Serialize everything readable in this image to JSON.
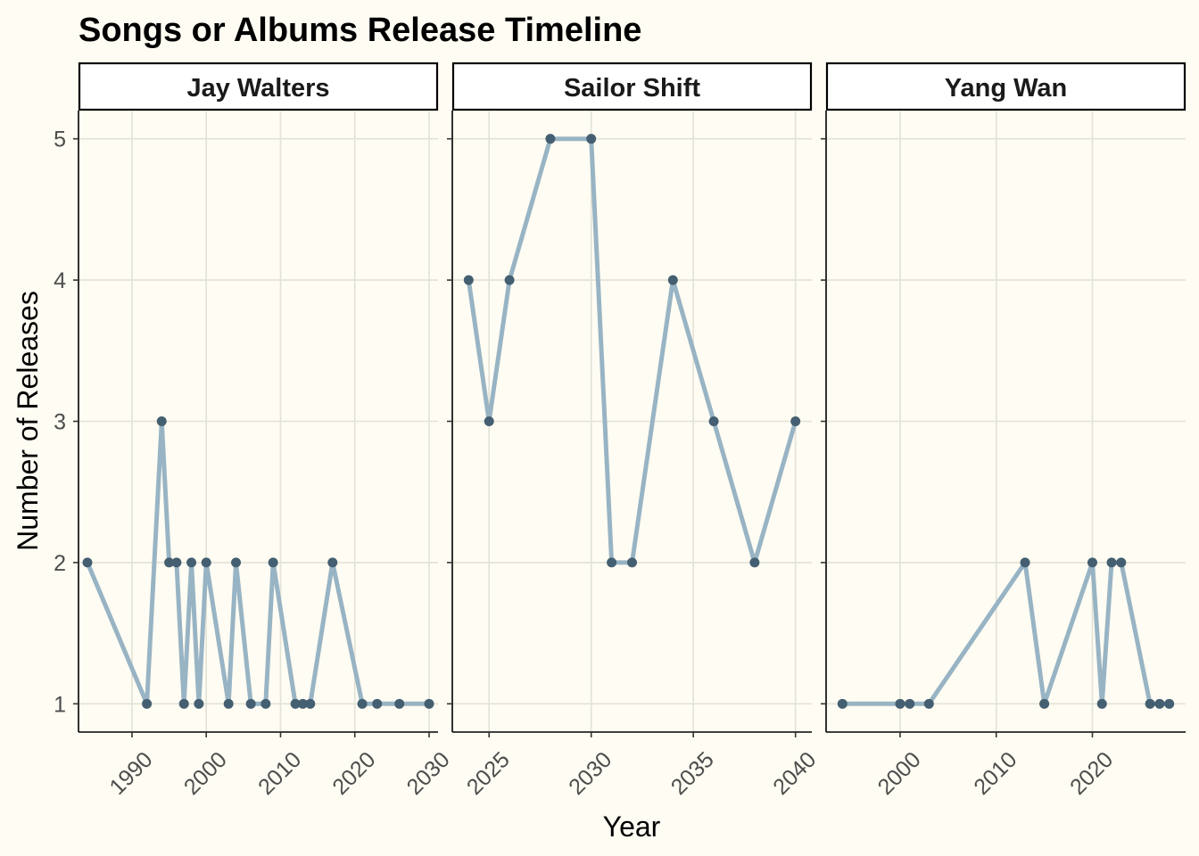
{
  "chart_data": {
    "type": "line",
    "title": "Songs or Albums Release Timeline",
    "xlabel": "Year",
    "ylabel": "Number of Releases",
    "y_ticks": [
      1,
      2,
      3,
      4,
      5
    ],
    "ylim": [
      0.8,
      5.2
    ],
    "grid": true,
    "colors": {
      "background": "#fffcf3",
      "line": "#98b4c4",
      "point": "#445f71",
      "grid": "#e2e2d6"
    },
    "facets": [
      {
        "name": "Jay Walters",
        "xlim": [
          1982.8,
          2031.2
        ],
        "x_ticks": [
          1990,
          2000,
          2010,
          2020,
          2030
        ],
        "x": [
          1984,
          1992,
          1994,
          1995,
          1996,
          1997,
          1998,
          1999,
          2000,
          2003,
          2004,
          2006,
          2008,
          2009,
          2012,
          2013,
          2014,
          2017,
          2021,
          2023,
          2026,
          2030
        ],
        "y": [
          2,
          1,
          3,
          2,
          2,
          1,
          2,
          1,
          2,
          1,
          2,
          1,
          1,
          2,
          1,
          1,
          1,
          2,
          1,
          1,
          1,
          1
        ]
      },
      {
        "name": "Sailor Shift",
        "xlim": [
          2023.2,
          2040.8
        ],
        "x_ticks": [
          2025,
          2030,
          2035,
          2040
        ],
        "x": [
          2024,
          2025,
          2026,
          2028,
          2030,
          2031,
          2032,
          2034,
          2036,
          2038,
          2040
        ],
        "y": [
          4,
          3,
          4,
          5,
          5,
          2,
          2,
          4,
          3,
          2,
          3
        ]
      },
      {
        "name": "Yang Wan",
        "xlim": [
          1992.3,
          2029.7
        ],
        "x_ticks": [
          2000,
          2010,
          2020
        ],
        "x": [
          1994,
          2000,
          2001,
          2003,
          2013,
          2015,
          2020,
          2021,
          2022,
          2023,
          2026,
          2027,
          2028
        ],
        "y": [
          1,
          1,
          1,
          1,
          2,
          1,
          2,
          1,
          2,
          2,
          1,
          1,
          1
        ]
      }
    ]
  }
}
